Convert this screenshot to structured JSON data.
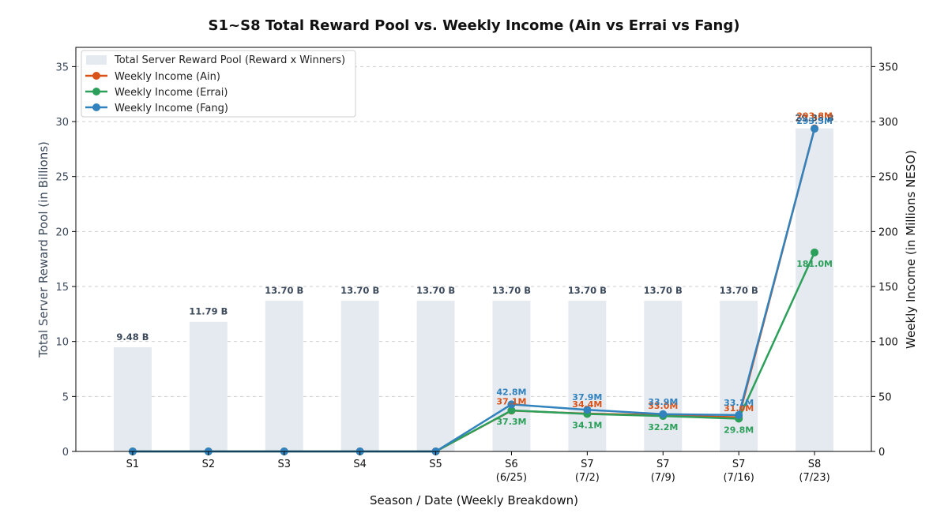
{
  "chart_data": {
    "type": "bar",
    "title": "S1~S8 Total Reward Pool vs. Weekly Income (Ain vs Errai vs Fang)",
    "xlabel": "Season / Date (Weekly Breakdown)",
    "ylabel_left": "Total Server Reward Pool (in Billions)",
    "ylabel_right": "Weekly Income (in Millions NESO)",
    "categories": [
      [
        "S1"
      ],
      [
        "S2"
      ],
      [
        "S3"
      ],
      [
        "S4"
      ],
      [
        "S5"
      ],
      [
        "S6",
        "(6/25)"
      ],
      [
        "S7",
        "(7/2)"
      ],
      [
        "S7",
        "(7/9)"
      ],
      [
        "S7",
        "(7/16)"
      ],
      [
        "S8",
        "(7/23)"
      ]
    ],
    "ylim_left": [
      0,
      36.75
    ],
    "ylim_right": [
      0,
      367.5
    ],
    "yticks_left": [
      0,
      5,
      10,
      15,
      20,
      25,
      30,
      35
    ],
    "yticks_right": [
      0,
      50,
      100,
      150,
      200,
      250,
      300,
      350
    ],
    "grid": true,
    "legend_position": "top-left",
    "bars": {
      "name": "Total Server Reward Pool (Reward x Winners)",
      "color": "#e5e9f0",
      "values": [
        9.48,
        11.79,
        13.7,
        13.7,
        13.7,
        13.7,
        13.7,
        13.7,
        13.7,
        29.38
      ],
      "labels": [
        "9.48 B",
        "11.79 B",
        "13.70 B",
        "13.70 B",
        "13.70 B",
        "13.70 B",
        "13.70 B",
        "13.70 B",
        "13.70 B",
        "29.38 B"
      ]
    },
    "series": [
      {
        "name": "Weekly Income (Ain)",
        "color": "#d95319",
        "values": [
          0,
          0,
          0,
          0,
          0,
          37.1,
          34.4,
          33.0,
          31.0,
          293.8
        ],
        "labels": [
          "",
          "",
          "",
          "",
          "",
          "37.1M",
          "34.4M",
          "33.0M",
          "31.0M",
          "293.8M"
        ]
      },
      {
        "name": "Weekly Income (Errai)",
        "color": "#2ca05a",
        "values": [
          0,
          0,
          0,
          0,
          0,
          37.3,
          34.1,
          32.2,
          29.8,
          181.0
        ],
        "labels": [
          "",
          "",
          "",
          "",
          "",
          "37.3M",
          "34.1M",
          "32.2M",
          "29.8M",
          "181.0M"
        ]
      },
      {
        "name": "Weekly Income (Fang)",
        "color": "#3182bd",
        "values": [
          0,
          0,
          0,
          0,
          0,
          42.8,
          37.9,
          33.9,
          33.1,
          293.5
        ],
        "labels": [
          "",
          "",
          "",
          "",
          "",
          "42.8M",
          "37.9M",
          "33.9M",
          "33.1M",
          "293.5M"
        ]
      }
    ]
  }
}
